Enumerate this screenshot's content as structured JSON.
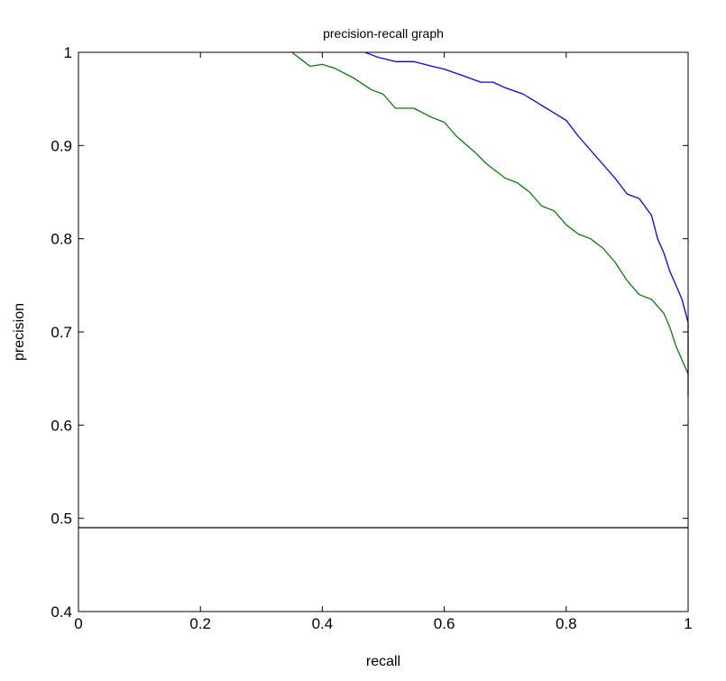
{
  "chart_data": {
    "type": "line",
    "title": "precision-recall graph",
    "xlabel": "recall",
    "ylabel": "precision",
    "xlim": [
      0,
      1
    ],
    "ylim": [
      0.4,
      1
    ],
    "xticks": [
      0,
      0.2,
      0.4,
      0.6,
      0.8,
      1
    ],
    "xtick_labels": [
      "0",
      "0.2",
      "0.4",
      "0.6",
      "0.8",
      "1"
    ],
    "yticks": [
      0.4,
      0.5,
      0.6,
      0.7,
      0.8,
      0.9,
      1
    ],
    "ytick_labels": [
      "0.4",
      "0.5",
      "0.6",
      "0.7",
      "0.8",
      "0.9",
      "1"
    ],
    "grid": false,
    "legend": "none",
    "series": [
      {
        "color": "#0000ff",
        "x": [
          0.47,
          0.49,
          0.52,
          0.55,
          0.58,
          0.6,
          0.63,
          0.66,
          0.68,
          0.7,
          0.73,
          0.76,
          0.78,
          0.8,
          0.82,
          0.84,
          0.86,
          0.88,
          0.9,
          0.92,
          0.94,
          0.95,
          0.96,
          0.97,
          0.98,
          0.99,
          1.0,
          1.0
        ],
        "y": [
          1.0,
          0.995,
          0.99,
          0.99,
          0.985,
          0.982,
          0.975,
          0.968,
          0.968,
          0.962,
          0.955,
          0.943,
          0.935,
          0.927,
          0.91,
          0.895,
          0.88,
          0.865,
          0.848,
          0.843,
          0.825,
          0.8,
          0.785,
          0.765,
          0.75,
          0.735,
          0.71,
          0.655
        ]
      },
      {
        "color": "#008000",
        "x": [
          0.35,
          0.37,
          0.38,
          0.4,
          0.42,
          0.45,
          0.48,
          0.5,
          0.52,
          0.55,
          0.58,
          0.6,
          0.62,
          0.65,
          0.67,
          0.7,
          0.72,
          0.74,
          0.76,
          0.78,
          0.8,
          0.82,
          0.84,
          0.86,
          0.88,
          0.9,
          0.92,
          0.94,
          0.96,
          0.97,
          0.98,
          0.99,
          1.0,
          1.0
        ],
        "y": [
          1.0,
          0.99,
          0.985,
          0.987,
          0.983,
          0.973,
          0.96,
          0.955,
          0.94,
          0.94,
          0.93,
          0.925,
          0.91,
          0.893,
          0.88,
          0.865,
          0.86,
          0.85,
          0.835,
          0.83,
          0.815,
          0.805,
          0.8,
          0.79,
          0.775,
          0.755,
          0.74,
          0.735,
          0.72,
          0.705,
          0.685,
          0.67,
          0.655,
          0.63
        ]
      }
    ],
    "reference_line": {
      "y": 0.49,
      "color": "#000000"
    }
  }
}
